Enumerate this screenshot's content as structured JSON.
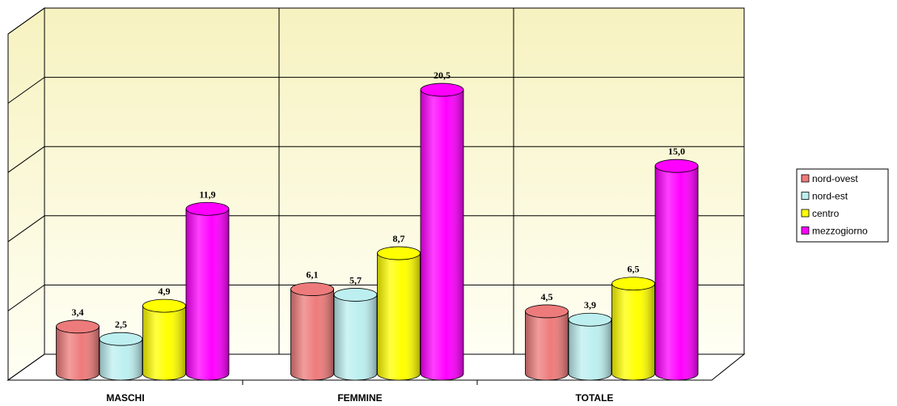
{
  "chart_data": {
    "type": "bar",
    "categories": [
      "MASCHI",
      "FEMMINE",
      "TOTALE"
    ],
    "series": [
      {
        "name": "nord-ovest",
        "color": "#ee7b7b",
        "values": [
          3.4,
          6.1,
          4.5
        ],
        "value_labels": [
          "3,4",
          "6,1",
          "4,5"
        ]
      },
      {
        "name": "nord-est",
        "color": "#bdeff0",
        "values": [
          2.5,
          5.7,
          3.9
        ],
        "value_labels": [
          "2,5",
          "5,7",
          "3,9"
        ]
      },
      {
        "name": "centro",
        "color": "#ffff00",
        "values": [
          4.9,
          8.7,
          6.5
        ],
        "value_labels": [
          "4,9",
          "8,7",
          "6,5"
        ]
      },
      {
        "name": "mezzogiorno",
        "color": "#ff00ff",
        "values": [
          11.9,
          20.5,
          15.0
        ],
        "value_labels": [
          "11,9",
          "20,5",
          "15,0"
        ]
      }
    ],
    "ylim": [
      0,
      25
    ],
    "yticks": [
      0,
      5,
      10,
      15,
      20,
      25
    ],
    "grid": true,
    "legend": "right"
  }
}
